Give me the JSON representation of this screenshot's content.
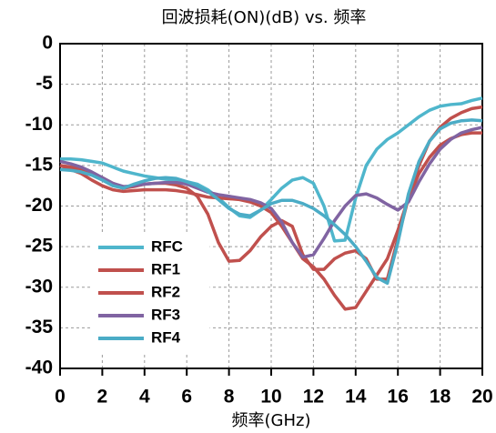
{
  "chart_data": {
    "type": "line",
    "title": "回波损耗(ON)(dB) vs. 频率",
    "x_label": "频率(GHz)",
    "x": [
      0,
      0.5,
      1,
      1.5,
      2,
      2.5,
      3,
      3.5,
      4,
      4.5,
      5,
      5.5,
      6,
      6.5,
      7,
      7.5,
      8,
      8.5,
      9,
      9.5,
      10,
      10.5,
      11,
      11.5,
      12,
      12.5,
      13,
      13.5,
      14,
      14.5,
      15,
      15.5,
      16,
      16.5,
      17,
      17.5,
      18,
      18.5,
      19,
      19.5,
      20
    ],
    "series": [
      {
        "name": "RFC",
        "color": "#4fb6cc",
        "values": [
          -14.2,
          -14.2,
          -14.3,
          -14.5,
          -14.7,
          -15.2,
          -15.7,
          -16,
          -16.3,
          -16.5,
          -16.7,
          -16.8,
          -17,
          -17.3,
          -18,
          -19,
          -20.2,
          -21.2,
          -21.4,
          -20.5,
          -19.2,
          -17.8,
          -16.8,
          -16.5,
          -17.2,
          -20,
          -24.3,
          -24.2,
          -19,
          -15,
          -13,
          -11.8,
          -11,
          -10,
          -9,
          -8.2,
          -7.7,
          -7.5,
          -7.4,
          -7,
          -6.7
        ]
      },
      {
        "name": "RF1",
        "color": "#c0504d",
        "values": [
          -15,
          -15.2,
          -15.5,
          -16,
          -16.5,
          -17.2,
          -17.8,
          -17.6,
          -17.3,
          -17.2,
          -17.2,
          -17.4,
          -17.8,
          -18.8,
          -21,
          -24.5,
          -26.8,
          -26.7,
          -25.5,
          -23.8,
          -22.5,
          -21.8,
          -22.5,
          -26,
          -27.8,
          -27.8,
          -26.5,
          -25.8,
          -25.5,
          -26.5,
          -29,
          -29,
          -24,
          -19,
          -15,
          -12,
          -10.3,
          -9.2,
          -8.5,
          -8,
          -7.8
        ]
      },
      {
        "name": "RF2",
        "color": "#c0504d",
        "values": [
          -15,
          -15.5,
          -16,
          -16.8,
          -17.5,
          -18,
          -18.2,
          -18.1,
          -18,
          -18,
          -18,
          -18.1,
          -18.3,
          -18.6,
          -18.9,
          -19,
          -19.1,
          -19.2,
          -19.5,
          -20,
          -20.8,
          -22.5,
          -24.5,
          -26.5,
          -27.5,
          -29,
          -31,
          -32.7,
          -32.5,
          -30.5,
          -28.5,
          -26.5,
          -23,
          -19,
          -16,
          -14,
          -12.5,
          -11.7,
          -11.2,
          -11,
          -11
        ]
      },
      {
        "name": "RF3",
        "color": "#8064a2",
        "values": [
          -14.5,
          -14.8,
          -15.2,
          -15.8,
          -16.5,
          -17.2,
          -17.6,
          -17.5,
          -17.3,
          -17.2,
          -17.1,
          -17.1,
          -17.3,
          -17.8,
          -18.3,
          -18.6,
          -18.8,
          -19,
          -19.2,
          -19.6,
          -20.3,
          -22,
          -24.5,
          -26.3,
          -26,
          -24,
          -21.8,
          -20,
          -18.7,
          -18.5,
          -19,
          -19.8,
          -20.5,
          -19.5,
          -17,
          -14.8,
          -13,
          -11.8,
          -11,
          -10.6,
          -10.3
        ]
      },
      {
        "name": "RF4",
        "color": "#4bacc6",
        "values": [
          -15.5,
          -15.6,
          -15.8,
          -16.2,
          -16.8,
          -17.5,
          -17.8,
          -17.3,
          -16.9,
          -16.6,
          -16.5,
          -16.6,
          -17,
          -17.5,
          -18.2,
          -19.2,
          -20.3,
          -21,
          -21.2,
          -20.5,
          -19.7,
          -19.3,
          -19.3,
          -19.7,
          -20.3,
          -21.2,
          -22.3,
          -23.5,
          -25,
          -26.8,
          -28.8,
          -29.5,
          -24.5,
          -18.5,
          -14.5,
          -12,
          -10.5,
          -9.8,
          -9.5,
          -9.4,
          -9.5
        ]
      }
    ],
    "xlim": [
      0,
      20
    ],
    "xticks": [
      0,
      2,
      4,
      6,
      8,
      10,
      12,
      14,
      16,
      18,
      20
    ],
    "ylim": [
      -40,
      0
    ],
    "yticks": [
      0,
      -5,
      -10,
      -15,
      -20,
      -25,
      -30,
      -35,
      -40
    ],
    "grid": true,
    "legend": "lower left"
  }
}
